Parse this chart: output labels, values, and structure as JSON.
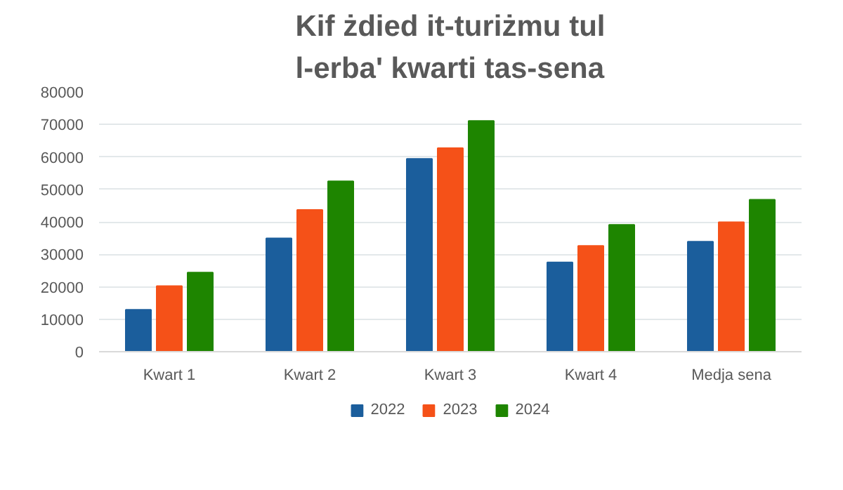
{
  "chart_data": {
    "type": "bar",
    "title": "Kif żdied it-turiżmu tul\nl-erba' kwarti tas-sena",
    "categories": [
      "Kwart 1",
      "Kwart 2",
      "Kwart 3",
      "Kwart 4",
      "Medja sena"
    ],
    "series": [
      {
        "name": "2022",
        "color": "#1b5e9c",
        "values": [
          12900,
          34900,
          59400,
          27500,
          33900
        ]
      },
      {
        "name": "2023",
        "color": "#f55118",
        "values": [
          20200,
          43700,
          62700,
          32600,
          39900
        ]
      },
      {
        "name": "2024",
        "color": "#1e8500",
        "values": [
          24400,
          52500,
          71100,
          39100,
          46800
        ]
      }
    ],
    "ylim": [
      0,
      80000
    ],
    "yticks": [
      0,
      10000,
      20000,
      30000,
      40000,
      50000,
      60000,
      70000,
      80000
    ],
    "grid": "y",
    "legend": "bottom"
  }
}
